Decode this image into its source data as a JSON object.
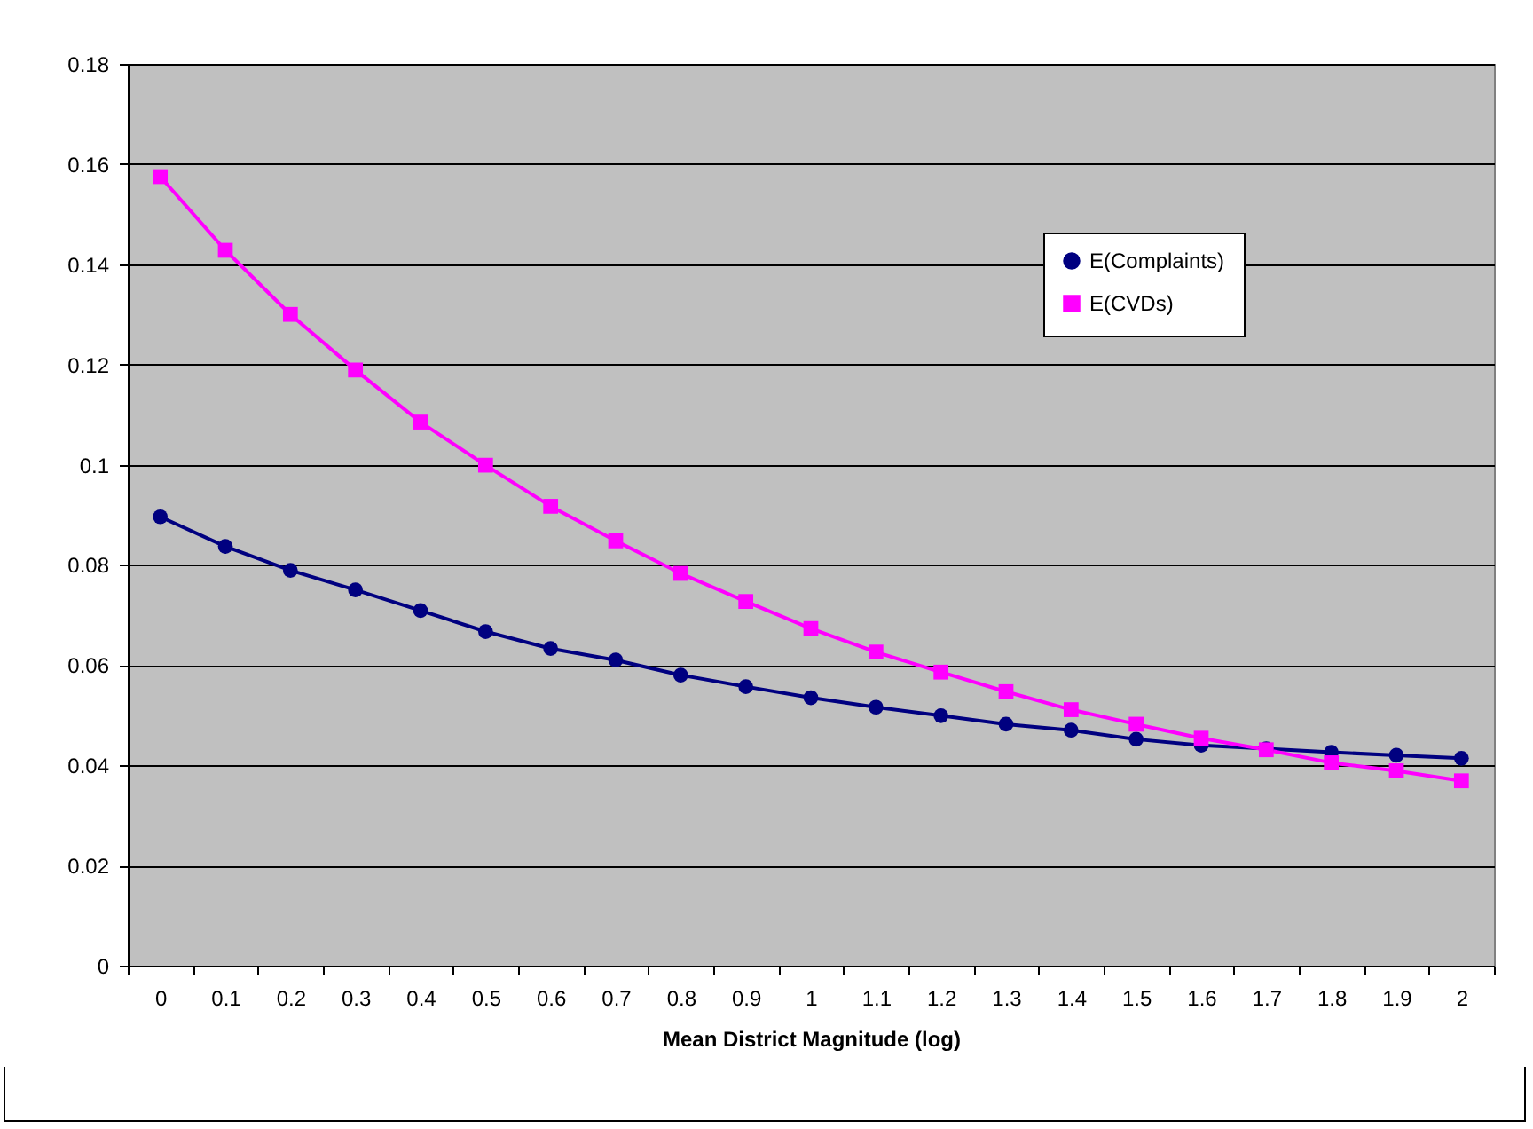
{
  "chart_data": {
    "type": "line",
    "xlabel": "Mean District Magnitude (log)",
    "categories": [
      "0",
      "0.1",
      "0.2",
      "0.3",
      "0.4",
      "0.5",
      "0.6",
      "0.7",
      "0.8",
      "0.9",
      "1",
      "1.1",
      "1.2",
      "1.3",
      "1.4",
      "1.5",
      "1.6",
      "1.7",
      "1.8",
      "1.9",
      "2"
    ],
    "series": [
      {
        "name": "E(Complaints)",
        "color": "#000080",
        "marker": "circle",
        "values": [
          0.0896,
          0.0837,
          0.0789,
          0.075,
          0.0709,
          0.0667,
          0.0633,
          0.061,
          0.058,
          0.0557,
          0.0535,
          0.0516,
          0.0499,
          0.0482,
          0.047,
          0.0452,
          0.044,
          0.0433,
          0.0426,
          0.042,
          0.0414
        ]
      },
      {
        "name": "E(CVDs)",
        "color": "#ff00ff",
        "marker": "square",
        "values": [
          0.1575,
          0.1428,
          0.13,
          0.1189,
          0.1085,
          0.0999,
          0.0917,
          0.0848,
          0.0783,
          0.0727,
          0.0673,
          0.0626,
          0.0586,
          0.0547,
          0.0511,
          0.0482,
          0.0454,
          0.0431,
          0.0405,
          0.0389,
          0.0369
        ]
      }
    ],
    "ylim": [
      0,
      0.18
    ],
    "yticks": [
      0,
      0.02,
      0.04,
      0.06,
      0.08,
      0.1,
      0.12,
      0.14,
      0.16,
      0.18
    ],
    "grid": "y",
    "legend": "top right",
    "line_style": "solid"
  }
}
